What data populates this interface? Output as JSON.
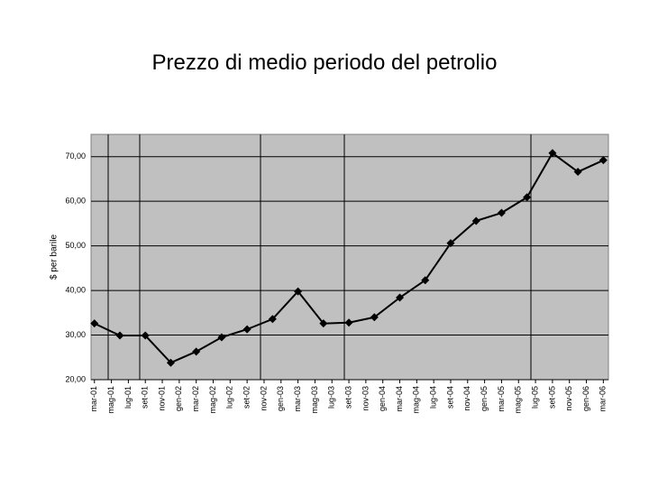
{
  "chart_data": {
    "type": "line",
    "title": "Prezzo di medio periodo del petrolio",
    "y_label": "$ per barile",
    "x": [
      0,
      3,
      6,
      9,
      12,
      15,
      18,
      21,
      24,
      27,
      30,
      33,
      36,
      39,
      42,
      45,
      48,
      51,
      54,
      57,
      60
    ],
    "series": [
      {
        "color": "#000000",
        "values": [
          32.6,
          29.9,
          29.9,
          23.8,
          26.3,
          29.5,
          31.3,
          33.6,
          39.8,
          32.6,
          32.8,
          34.0,
          38.4,
          42.3,
          50.6,
          55.6,
          57.4,
          60.9,
          70.8,
          66.6,
          69.2
        ]
      }
    ],
    "xlim": [
      -0.4,
      60.6
    ],
    "xticks": [
      {
        "value": 0,
        "label": "mar-01"
      },
      {
        "value": 2,
        "label": "mag-01"
      },
      {
        "value": 4,
        "label": "lug-01"
      },
      {
        "value": 6,
        "label": "set-01"
      },
      {
        "value": 8,
        "label": "nov-01"
      },
      {
        "value": 10,
        "label": "gen-02"
      },
      {
        "value": 12,
        "label": "mar-02"
      },
      {
        "value": 14,
        "label": "mag-02"
      },
      {
        "value": 16,
        "label": "lug-02"
      },
      {
        "value": 18,
        "label": "set-02"
      },
      {
        "value": 20,
        "label": "nov-02"
      },
      {
        "value": 22,
        "label": "gen-03"
      },
      {
        "value": 24,
        "label": "mar-03"
      },
      {
        "value": 26,
        "label": "mag-03"
      },
      {
        "value": 28,
        "label": "lug-03"
      },
      {
        "value": 30,
        "label": "set-03"
      },
      {
        "value": 32,
        "label": "nov-03"
      },
      {
        "value": 34,
        "label": "gen-04"
      },
      {
        "value": 36,
        "label": "mar-04"
      },
      {
        "value": 38,
        "label": "mag-04"
      },
      {
        "value": 40,
        "label": "lug-04"
      },
      {
        "value": 42,
        "label": "set-04"
      },
      {
        "value": 44,
        "label": "nov-04"
      },
      {
        "value": 46,
        "label": "gen-05"
      },
      {
        "value": 48,
        "label": "mar-05"
      },
      {
        "value": 50,
        "label": "mag-05"
      },
      {
        "value": 52,
        "label": "lug-05"
      },
      {
        "value": 54,
        "label": "set-05"
      },
      {
        "value": 56,
        "label": "nov-05"
      },
      {
        "value": 58,
        "label": "gen-06"
      },
      {
        "value": 60,
        "label": "mar-06"
      }
    ],
    "ylim": [
      20,
      75
    ],
    "yticks": [
      {
        "value": 20,
        "label": "20,00"
      },
      {
        "value": 30,
        "label": "30,00"
      },
      {
        "value": 40,
        "label": "40,00"
      },
      {
        "value": 50,
        "label": "50,00"
      },
      {
        "value": 60,
        "label": "60,00"
      },
      {
        "value": 70,
        "label": "70,00"
      }
    ],
    "grid": true
  }
}
